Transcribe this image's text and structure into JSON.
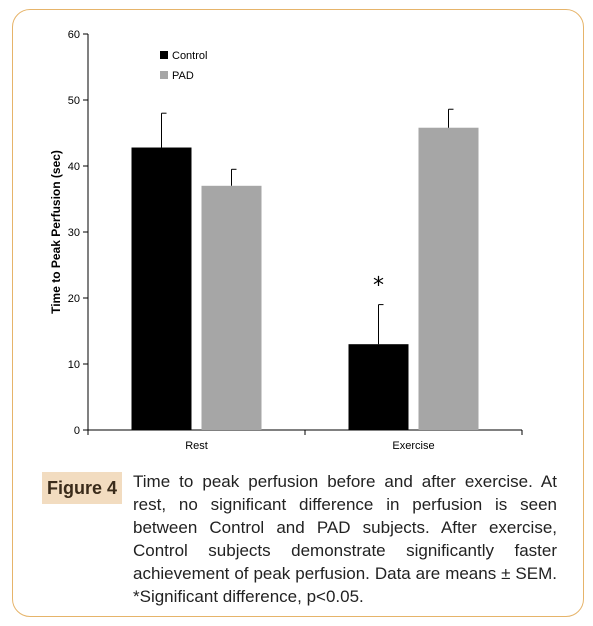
{
  "figure": {
    "label": "Figure 4",
    "caption": "Time to peak perfusion before and after exercise. At rest, no significant difference in perfusion is seen between Control and PAD subjects. After exercise, Control subjects demonstrate significantly faster achievement of peak perfusion. Data are means ± SEM. *Significant difference, p<0.05."
  },
  "chart_data": {
    "type": "bar",
    "title": "",
    "xlabel": "",
    "ylabel": "Time to Peak Perfusion (sec)",
    "categories": [
      "Rest",
      "Exercise"
    ],
    "ylim": [
      0,
      60
    ],
    "yticks": [
      "0",
      "10",
      "20",
      "30",
      "40",
      "50",
      "60"
    ],
    "grid": false,
    "legend_position": "top-left",
    "series": [
      {
        "name": "Control",
        "color": "#000000",
        "values": [
          42.8,
          13.0
        ],
        "errors": [
          5.2,
          6.0
        ]
      },
      {
        "name": "PAD",
        "color": "#a6a6a6",
        "values": [
          37.0,
          45.8
        ],
        "errors": [
          2.5,
          2.8
        ]
      }
    ],
    "annotations": [
      {
        "text": "*",
        "category": "Exercise",
        "series": "Control"
      }
    ]
  }
}
